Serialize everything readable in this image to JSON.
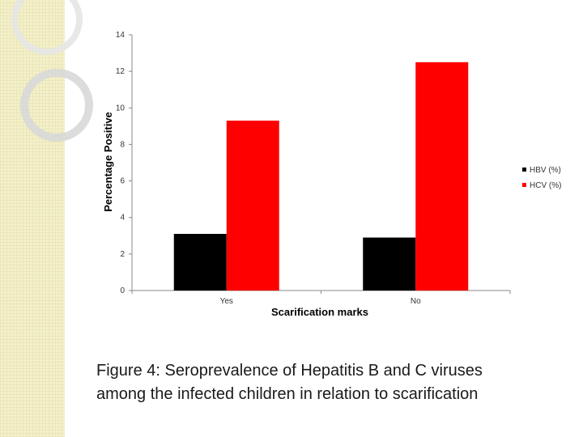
{
  "chart_data": {
    "type": "bar",
    "categories": [
      "Yes",
      "No"
    ],
    "series": [
      {
        "name": "HBV (%)",
        "values": [
          3.1,
          2.9
        ],
        "color": "#000000"
      },
      {
        "name": "HCV (%)",
        "values": [
          9.3,
          12.5
        ],
        "color": "#ff0000"
      }
    ],
    "ylim": [
      0,
      14
    ],
    "yticks": [
      0,
      2,
      4,
      6,
      8,
      10,
      12,
      14
    ],
    "xlabel": "Scarification marks",
    "ylabel": "Percentage Positive",
    "legend_position": "right",
    "grid": false
  },
  "caption": {
    "line1": "Figure 4: Seroprevalence of Hepatitis B and C viruses",
    "line2": "among the infected children in relation to scarification"
  }
}
